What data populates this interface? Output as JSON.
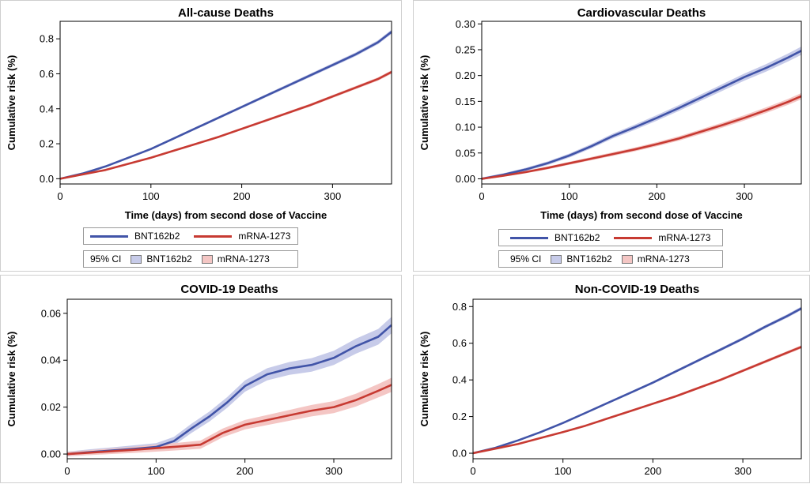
{
  "colors": {
    "bnt": "#4154a8",
    "mrna": "#c73a32",
    "bnt_band": "#c7cbe9",
    "mrna_band": "#f4c6c4",
    "frame": "#000000"
  },
  "legend": {
    "series_bnt": "BNT162b2",
    "series_mrna": "mRNA-1273",
    "ci_label": "95% CI",
    "ci_bnt": "BNT162b2",
    "ci_mrna": "mRNA-1273"
  },
  "chart_data": [
    {
      "type": "line",
      "title": "All-cause Deaths",
      "xlabel": "Time (days) from second dose of Vaccine",
      "ylabel": "Cumulative risk (%)",
      "xlim": [
        0,
        365
      ],
      "ylim": [
        -0.03,
        0.9
      ],
      "xticks": [
        0,
        100,
        200,
        300
      ],
      "yticks": [
        0.0,
        0.2,
        0.4,
        0.6,
        0.8
      ],
      "yformat": 1,
      "grid": false,
      "legend": "below",
      "series": [
        {
          "name": "BNT162b2",
          "x": [
            0,
            25,
            50,
            75,
            100,
            125,
            150,
            175,
            200,
            225,
            250,
            275,
            300,
            325,
            350,
            365
          ],
          "y": [
            0.0,
            0.03,
            0.07,
            0.12,
            0.17,
            0.23,
            0.29,
            0.35,
            0.41,
            0.47,
            0.53,
            0.59,
            0.65,
            0.71,
            0.78,
            0.84
          ],
          "ci": 0.012
        },
        {
          "name": "mRNA-1273",
          "x": [
            0,
            25,
            50,
            75,
            100,
            125,
            150,
            175,
            200,
            225,
            250,
            275,
            300,
            325,
            350,
            365
          ],
          "y": [
            0.0,
            0.025,
            0.05,
            0.085,
            0.12,
            0.16,
            0.2,
            0.24,
            0.285,
            0.33,
            0.375,
            0.42,
            0.47,
            0.52,
            0.57,
            0.61
          ],
          "ci": 0.01
        }
      ]
    },
    {
      "type": "line",
      "title": "Cardiovascular Deaths",
      "xlabel": "Time (days) from second dose of Vaccine",
      "ylabel": "Cumulative risk (%)",
      "xlim": [
        0,
        365
      ],
      "ylim": [
        -0.01,
        0.305
      ],
      "xticks": [
        0,
        100,
        200,
        300
      ],
      "yticks": [
        0.0,
        0.05,
        0.1,
        0.15,
        0.2,
        0.25,
        0.3
      ],
      "yformat": 2,
      "grid": false,
      "legend": "below",
      "series": [
        {
          "name": "BNT162b2",
          "x": [
            0,
            25,
            50,
            75,
            100,
            125,
            150,
            175,
            200,
            225,
            250,
            275,
            300,
            325,
            350,
            365
          ],
          "y": [
            0.0,
            0.008,
            0.018,
            0.03,
            0.045,
            0.063,
            0.083,
            0.1,
            0.118,
            0.137,
            0.157,
            0.177,
            0.197,
            0.215,
            0.235,
            0.248
          ],
          "ci": 0.008
        },
        {
          "name": "mRNA-1273",
          "x": [
            0,
            25,
            50,
            75,
            100,
            125,
            150,
            175,
            200,
            225,
            250,
            275,
            300,
            325,
            350,
            365
          ],
          "y": [
            0.0,
            0.006,
            0.013,
            0.021,
            0.03,
            0.039,
            0.048,
            0.057,
            0.067,
            0.078,
            0.091,
            0.104,
            0.118,
            0.133,
            0.149,
            0.16
          ],
          "ci": 0.006
        }
      ]
    },
    {
      "type": "line",
      "title": "COVID-19 Deaths",
      "xlabel": "",
      "ylabel": "Cumulative risk (%)",
      "xlim": [
        0,
        365
      ],
      "ylim": [
        -0.002,
        0.066
      ],
      "xticks": [
        0,
        100,
        200,
        300
      ],
      "yticks": [
        0.0,
        0.02,
        0.04,
        0.06
      ],
      "yformat": 2,
      "grid": false,
      "legend": "none",
      "series": [
        {
          "name": "BNT162b2",
          "x": [
            0,
            25,
            50,
            75,
            100,
            120,
            140,
            160,
            180,
            200,
            225,
            250,
            275,
            300,
            325,
            350,
            365
          ],
          "y": [
            0.0,
            0.0008,
            0.0015,
            0.0022,
            0.003,
            0.0055,
            0.011,
            0.016,
            0.022,
            0.029,
            0.034,
            0.0365,
            0.038,
            0.041,
            0.046,
            0.05,
            0.055
          ],
          "ci": 0.0035
        },
        {
          "name": "mRNA-1273",
          "x": [
            0,
            25,
            50,
            75,
            100,
            125,
            150,
            175,
            200,
            225,
            250,
            275,
            300,
            325,
            350,
            365
          ],
          "y": [
            0.0,
            0.0006,
            0.0012,
            0.0018,
            0.0025,
            0.0032,
            0.004,
            0.009,
            0.0125,
            0.0145,
            0.0165,
            0.0185,
            0.02,
            0.023,
            0.027,
            0.0295
          ],
          "ci": 0.003
        }
      ]
    },
    {
      "type": "line",
      "title": "Non-COVID-19 Deaths",
      "xlabel": "",
      "ylabel": "Cumulative risk (%)",
      "xlim": [
        0,
        365
      ],
      "ylim": [
        -0.03,
        0.84
      ],
      "xticks": [
        0,
        100,
        200,
        300
      ],
      "yticks": [
        0.0,
        0.2,
        0.4,
        0.6,
        0.8
      ],
      "yformat": 1,
      "grid": false,
      "legend": "none",
      "series": [
        {
          "name": "BNT162b2",
          "x": [
            0,
            25,
            50,
            75,
            100,
            125,
            150,
            175,
            200,
            225,
            250,
            275,
            300,
            325,
            350,
            365
          ],
          "y": [
            0.0,
            0.03,
            0.07,
            0.115,
            0.165,
            0.22,
            0.275,
            0.33,
            0.385,
            0.445,
            0.505,
            0.565,
            0.625,
            0.69,
            0.75,
            0.79
          ],
          "ci": 0.01
        },
        {
          "name": "mRNA-1273",
          "x": [
            0,
            25,
            50,
            75,
            100,
            125,
            150,
            175,
            200,
            225,
            250,
            275,
            300,
            325,
            350,
            365
          ],
          "y": [
            0.0,
            0.025,
            0.05,
            0.083,
            0.115,
            0.15,
            0.19,
            0.23,
            0.27,
            0.31,
            0.355,
            0.4,
            0.45,
            0.5,
            0.55,
            0.58
          ],
          "ci": 0.009
        }
      ]
    }
  ]
}
